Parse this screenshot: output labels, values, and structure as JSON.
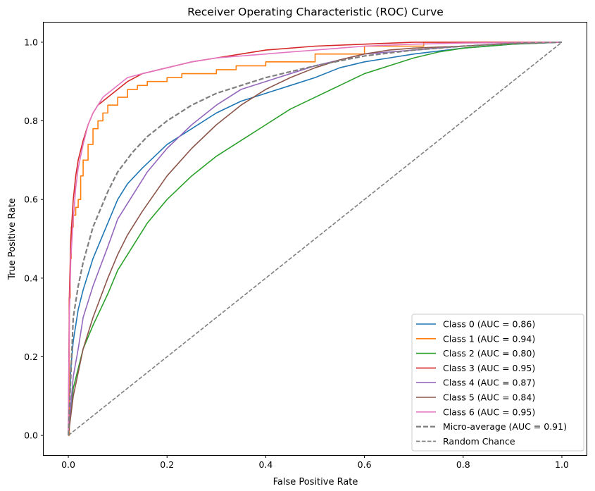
{
  "chart_data": {
    "type": "line",
    "title": "Receiver Operating Characteristic (ROC) Curve",
    "xlabel": "False Positive Rate",
    "ylabel": "True Positive Rate",
    "xlim": [
      -0.05,
      1.05
    ],
    "ylim": [
      -0.05,
      1.05
    ],
    "xticks": [
      "0.0",
      "0.2",
      "0.4",
      "0.6",
      "0.8",
      "1.0"
    ],
    "yticks": [
      "0.0",
      "0.2",
      "0.4",
      "0.6",
      "0.8",
      "1.0"
    ],
    "grid": false,
    "legend_position": "bottom-right",
    "series": [
      {
        "name": "Class 0 (AUC = 0.86)",
        "color": "#1f77b4",
        "style": "solid",
        "stepped": false,
        "x": [
          0,
          0.005,
          0.01,
          0.02,
          0.03,
          0.05,
          0.08,
          0.1,
          0.12,
          0.15,
          0.2,
          0.25,
          0.3,
          0.35,
          0.4,
          0.45,
          0.5,
          0.55,
          0.6,
          0.65,
          0.7,
          0.8,
          0.9,
          1.0
        ],
        "y": [
          0,
          0.17,
          0.24,
          0.32,
          0.37,
          0.45,
          0.54,
          0.6,
          0.64,
          0.68,
          0.74,
          0.78,
          0.82,
          0.85,
          0.87,
          0.89,
          0.91,
          0.935,
          0.95,
          0.96,
          0.97,
          0.985,
          0.995,
          1.0
        ]
      },
      {
        "name": "Class 1 (AUC = 0.94)",
        "color": "#ff7f0e",
        "style": "solid",
        "stepped": true,
        "x": [
          0,
          0.002,
          0.004,
          0.006,
          0.01,
          0.015,
          0.02,
          0.025,
          0.03,
          0.04,
          0.05,
          0.06,
          0.07,
          0.08,
          0.1,
          0.12,
          0.14,
          0.16,
          0.2,
          0.23,
          0.3,
          0.34,
          0.4,
          0.5,
          0.6,
          0.72,
          0.8,
          1.0
        ],
        "y": [
          0,
          0.35,
          0.45,
          0.53,
          0.56,
          0.58,
          0.6,
          0.66,
          0.7,
          0.74,
          0.78,
          0.8,
          0.82,
          0.84,
          0.86,
          0.88,
          0.89,
          0.9,
          0.91,
          0.92,
          0.93,
          0.94,
          0.95,
          0.97,
          0.99,
          1.0,
          1.0,
          1.0
        ]
      },
      {
        "name": "Class 2 (AUC = 0.80)",
        "color": "#2ca02c",
        "style": "solid",
        "stepped": false,
        "x": [
          0,
          0.01,
          0.02,
          0.03,
          0.05,
          0.08,
          0.1,
          0.13,
          0.16,
          0.2,
          0.25,
          0.3,
          0.35,
          0.4,
          0.45,
          0.5,
          0.55,
          0.6,
          0.65,
          0.7,
          0.75,
          0.8,
          0.9,
          1.0
        ],
        "y": [
          0,
          0.12,
          0.17,
          0.22,
          0.28,
          0.36,
          0.42,
          0.48,
          0.54,
          0.6,
          0.66,
          0.71,
          0.75,
          0.79,
          0.83,
          0.86,
          0.89,
          0.92,
          0.94,
          0.96,
          0.975,
          0.985,
          0.995,
          1.0
        ]
      },
      {
        "name": "Class 3 (AUC = 0.95)",
        "color": "#d62728",
        "style": "solid",
        "stepped": false,
        "x": [
          0,
          0.002,
          0.005,
          0.01,
          0.015,
          0.02,
          0.03,
          0.04,
          0.05,
          0.06,
          0.08,
          0.1,
          0.12,
          0.15,
          0.2,
          0.25,
          0.3,
          0.35,
          0.4,
          0.5,
          0.6,
          0.7,
          0.8,
          1.0
        ],
        "y": [
          0,
          0.35,
          0.5,
          0.6,
          0.66,
          0.7,
          0.75,
          0.79,
          0.82,
          0.84,
          0.86,
          0.88,
          0.9,
          0.92,
          0.935,
          0.95,
          0.96,
          0.97,
          0.98,
          0.99,
          0.995,
          1.0,
          1.0,
          1.0
        ]
      },
      {
        "name": "Class 4 (AUC = 0.87)",
        "color": "#9467bd",
        "style": "solid",
        "stepped": false,
        "x": [
          0,
          0.01,
          0.02,
          0.03,
          0.05,
          0.08,
          0.1,
          0.13,
          0.16,
          0.2,
          0.25,
          0.3,
          0.35,
          0.4,
          0.45,
          0.5,
          0.55,
          0.6,
          0.7,
          0.8,
          0.9,
          1.0
        ],
        "y": [
          0,
          0.15,
          0.22,
          0.3,
          0.38,
          0.48,
          0.55,
          0.61,
          0.67,
          0.73,
          0.79,
          0.84,
          0.88,
          0.9,
          0.92,
          0.94,
          0.955,
          0.97,
          0.98,
          0.99,
          0.997,
          1.0
        ]
      },
      {
        "name": "Class 5 (AUC = 0.84)",
        "color": "#8c564b",
        "style": "solid",
        "stepped": false,
        "x": [
          0,
          0.01,
          0.02,
          0.03,
          0.05,
          0.08,
          0.1,
          0.12,
          0.15,
          0.2,
          0.25,
          0.3,
          0.35,
          0.4,
          0.45,
          0.5,
          0.55,
          0.6,
          0.65,
          0.7,
          0.8,
          0.9,
          1.0
        ],
        "y": [
          0,
          0.1,
          0.16,
          0.22,
          0.3,
          0.4,
          0.46,
          0.51,
          0.57,
          0.66,
          0.73,
          0.79,
          0.84,
          0.88,
          0.91,
          0.935,
          0.955,
          0.97,
          0.98,
          0.985,
          0.99,
          0.997,
          1.0
        ]
      },
      {
        "name": "Class 6 (AUC = 0.95)",
        "color": "#e377c2",
        "style": "solid",
        "stepped": false,
        "x": [
          0,
          0.002,
          0.005,
          0.01,
          0.015,
          0.02,
          0.03,
          0.04,
          0.05,
          0.07,
          0.1,
          0.12,
          0.15,
          0.2,
          0.25,
          0.3,
          0.35,
          0.4,
          0.5,
          0.6,
          0.7,
          0.8,
          1.0
        ],
        "y": [
          0,
          0.3,
          0.45,
          0.55,
          0.63,
          0.68,
          0.74,
          0.79,
          0.82,
          0.86,
          0.89,
          0.91,
          0.92,
          0.935,
          0.95,
          0.96,
          0.965,
          0.97,
          0.98,
          0.99,
          0.995,
          0.998,
          1.0
        ]
      },
      {
        "name": "Micro-average (AUC = 0.91)",
        "color": "#7f7f7f",
        "style": "dashed-thick",
        "stepped": false,
        "x": [
          0,
          0.01,
          0.02,
          0.03,
          0.05,
          0.08,
          0.1,
          0.13,
          0.16,
          0.2,
          0.25,
          0.3,
          0.35,
          0.4,
          0.5,
          0.6,
          0.7,
          0.8,
          0.9,
          1.0
        ],
        "y": [
          0,
          0.3,
          0.38,
          0.44,
          0.53,
          0.62,
          0.67,
          0.72,
          0.76,
          0.8,
          0.84,
          0.87,
          0.89,
          0.91,
          0.94,
          0.965,
          0.98,
          0.99,
          0.997,
          1.0
        ]
      },
      {
        "name": "Random Chance",
        "color": "#7f7f7f",
        "style": "dashed",
        "stepped": false,
        "x": [
          0,
          1
        ],
        "y": [
          0,
          1
        ]
      }
    ]
  }
}
